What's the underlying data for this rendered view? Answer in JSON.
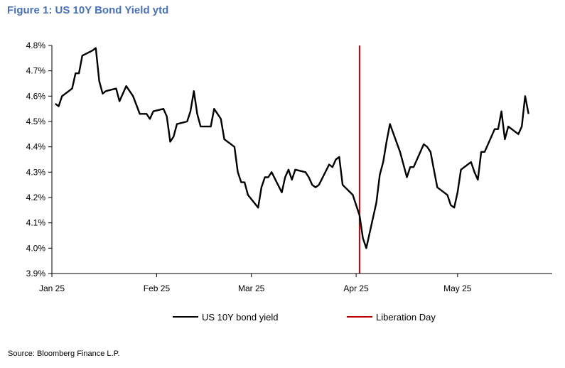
{
  "figure": {
    "title": "Figure 1: US 10Y Bond Yield ytd",
    "source": "Source: Bloomberg Finance L.P."
  },
  "colors": {
    "title": "#4a71b5",
    "series_line": "#000000",
    "event_line": "#c00000",
    "axis": "#000000"
  },
  "chart_data": {
    "type": "line",
    "title": "",
    "xlabel": "",
    "ylabel": "",
    "ylim": [
      3.9,
      4.8
    ],
    "ytick_values": [
      3.9,
      4.0,
      4.1,
      4.2,
      4.3,
      4.4,
      4.5,
      4.6,
      4.7,
      4.8
    ],
    "ytick_labels": [
      "3.9%",
      "4.0%",
      "4.1%",
      "4.2%",
      "4.3%",
      "4.4%",
      "4.5%",
      "4.6%",
      "4.7%",
      "4.8%"
    ],
    "xlim": [
      "2025-01-01",
      "2025-05-29"
    ],
    "xticks": [
      {
        "date": "2025-01-01",
        "label": "Jan 25"
      },
      {
        "date": "2025-02-01",
        "label": "Feb 25"
      },
      {
        "date": "2025-03-01",
        "label": "Mar 25"
      },
      {
        "date": "2025-04-01",
        "label": "Apr 25"
      },
      {
        "date": "2025-05-01",
        "label": "May 25"
      }
    ],
    "grid": false,
    "legend_position": "bottom",
    "series": [
      {
        "name": "US 10Y bond yield",
        "color": "#000000",
        "points": [
          [
            "2025-01-02",
            4.57
          ],
          [
            "2025-01-03",
            4.56
          ],
          [
            "2025-01-04",
            4.6
          ],
          [
            "2025-01-06",
            4.62
          ],
          [
            "2025-01-07",
            4.63
          ],
          [
            "2025-01-08",
            4.69
          ],
          [
            "2025-01-09",
            4.69
          ],
          [
            "2025-01-10",
            4.76
          ],
          [
            "2025-01-13",
            4.78
          ],
          [
            "2025-01-14",
            4.79
          ],
          [
            "2025-01-15",
            4.66
          ],
          [
            "2025-01-16",
            4.61
          ],
          [
            "2025-01-17",
            4.62
          ],
          [
            "2025-01-20",
            4.63
          ],
          [
            "2025-01-21",
            4.58
          ],
          [
            "2025-01-22",
            4.61
          ],
          [
            "2025-01-23",
            4.64
          ],
          [
            "2025-01-24",
            4.62
          ],
          [
            "2025-01-25",
            4.6
          ],
          [
            "2025-01-27",
            4.53
          ],
          [
            "2025-01-28",
            4.53
          ],
          [
            "2025-01-29",
            4.53
          ],
          [
            "2025-01-30",
            4.51
          ],
          [
            "2025-01-31",
            4.54
          ],
          [
            "2025-02-03",
            4.55
          ],
          [
            "2025-02-04",
            4.52
          ],
          [
            "2025-02-05",
            4.42
          ],
          [
            "2025-02-06",
            4.44
          ],
          [
            "2025-02-07",
            4.49
          ],
          [
            "2025-02-10",
            4.5
          ],
          [
            "2025-02-11",
            4.54
          ],
          [
            "2025-02-12",
            4.62
          ],
          [
            "2025-02-13",
            4.53
          ],
          [
            "2025-02-14",
            4.48
          ],
          [
            "2025-02-17",
            4.48
          ],
          [
            "2025-02-18",
            4.55
          ],
          [
            "2025-02-19",
            4.53
          ],
          [
            "2025-02-20",
            4.51
          ],
          [
            "2025-02-21",
            4.43
          ],
          [
            "2025-02-24",
            4.4
          ],
          [
            "2025-02-25",
            4.3
          ],
          [
            "2025-02-26",
            4.26
          ],
          [
            "2025-02-27",
            4.26
          ],
          [
            "2025-02-28",
            4.21
          ],
          [
            "2025-03-03",
            4.16
          ],
          [
            "2025-03-04",
            4.24
          ],
          [
            "2025-03-05",
            4.28
          ],
          [
            "2025-03-06",
            4.28
          ],
          [
            "2025-03-07",
            4.3
          ],
          [
            "2025-03-10",
            4.22
          ],
          [
            "2025-03-11",
            4.28
          ],
          [
            "2025-03-12",
            4.31
          ],
          [
            "2025-03-13",
            4.27
          ],
          [
            "2025-03-14",
            4.31
          ],
          [
            "2025-03-17",
            4.3
          ],
          [
            "2025-03-18",
            4.28
          ],
          [
            "2025-03-19",
            4.25
          ],
          [
            "2025-03-20",
            4.24
          ],
          [
            "2025-03-21",
            4.25
          ],
          [
            "2025-03-24",
            4.33
          ],
          [
            "2025-03-25",
            4.32
          ],
          [
            "2025-03-26",
            4.35
          ],
          [
            "2025-03-27",
            4.36
          ],
          [
            "2025-03-28",
            4.25
          ],
          [
            "2025-03-31",
            4.21
          ],
          [
            "2025-04-01",
            4.17
          ],
          [
            "2025-04-02",
            4.13
          ],
          [
            "2025-04-03",
            4.04
          ],
          [
            "2025-04-04",
            4.0
          ],
          [
            "2025-04-07",
            4.18
          ],
          [
            "2025-04-08",
            4.29
          ],
          [
            "2025-04-09",
            4.34
          ],
          [
            "2025-04-10",
            4.42
          ],
          [
            "2025-04-11",
            4.49
          ],
          [
            "2025-04-14",
            4.38
          ],
          [
            "2025-04-15",
            4.33
          ],
          [
            "2025-04-16",
            4.28
          ],
          [
            "2025-04-17",
            4.32
          ],
          [
            "2025-04-18",
            4.32
          ],
          [
            "2025-04-21",
            4.41
          ],
          [
            "2025-04-22",
            4.4
          ],
          [
            "2025-04-23",
            4.38
          ],
          [
            "2025-04-24",
            4.31
          ],
          [
            "2025-04-25",
            4.24
          ],
          [
            "2025-04-28",
            4.21
          ],
          [
            "2025-04-29",
            4.17
          ],
          [
            "2025-04-30",
            4.16
          ],
          [
            "2025-05-01",
            4.22
          ],
          [
            "2025-05-02",
            4.31
          ],
          [
            "2025-05-05",
            4.34
          ],
          [
            "2025-05-06",
            4.3
          ],
          [
            "2025-05-07",
            4.27
          ],
          [
            "2025-05-08",
            4.38
          ],
          [
            "2025-05-09",
            4.38
          ],
          [
            "2025-05-12",
            4.47
          ],
          [
            "2025-05-13",
            4.47
          ],
          [
            "2025-05-14",
            4.54
          ],
          [
            "2025-05-15",
            4.43
          ],
          [
            "2025-05-16",
            4.48
          ],
          [
            "2025-05-19",
            4.45
          ],
          [
            "2025-05-20",
            4.48
          ],
          [
            "2025-05-21",
            4.6
          ],
          [
            "2025-05-22",
            4.53
          ]
        ]
      }
    ],
    "events": [
      {
        "name": "Liberation Day",
        "date": "2025-04-02",
        "color": "#c00000"
      }
    ]
  }
}
